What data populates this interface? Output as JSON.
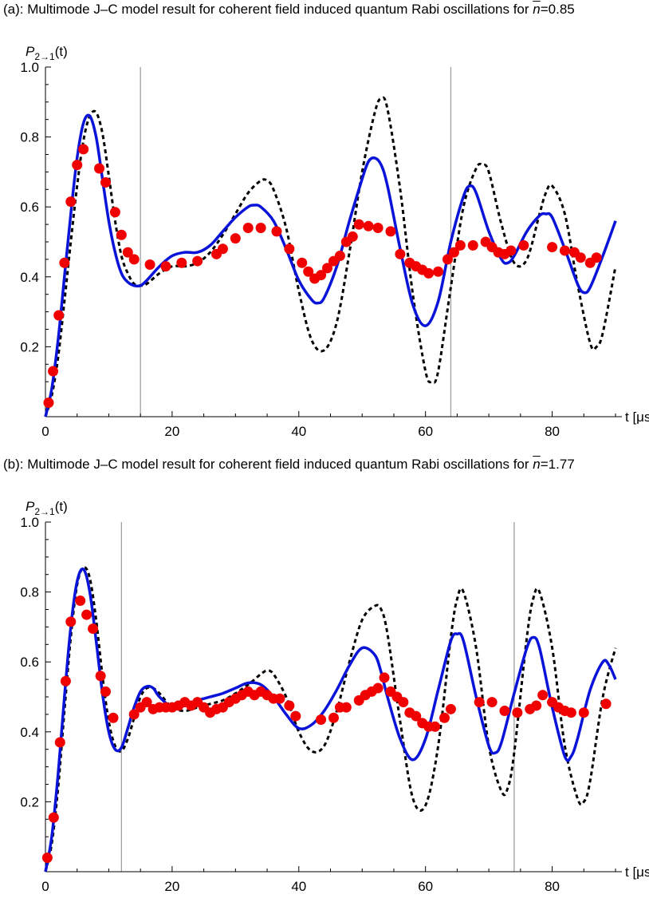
{
  "panels": [
    {
      "title_prefix": "(a): Multimode J–C model result for coherent field induced quantum Rabi oscillations for ",
      "nbar_symbol": "n",
      "nbar_value": "=0.85"
    },
    {
      "title_prefix": "(b): Multimode J–C model result for coherent field induced quantum Rabi oscillations for ",
      "nbar_symbol": "n",
      "nbar_value": "=1.77"
    }
  ],
  "colors": {
    "model_curve": "#0a14d8",
    "dashed_curve": "#000000",
    "data_points": "#f00000",
    "marker_lines": "#999999"
  },
  "chart_data": [
    {
      "type": "line",
      "ylabel_main": "P",
      "ylabel_sub": "2→1",
      "ylabel_suffix": "(t)",
      "xlabel": "t [μs]",
      "xlim": [
        0,
        90
      ],
      "ylim": [
        0,
        1.0
      ],
      "xticks": [
        0,
        20,
        40,
        60,
        80
      ],
      "yticks": [
        "0.2",
        "0.4",
        "0.6",
        "0.8",
        "1.0"
      ],
      "ytick_values": [
        0.2,
        0.4,
        0.6,
        0.8,
        1.0
      ],
      "vertical_markers": [
        15,
        64
      ],
      "series": [
        {
          "style": "solid",
          "x": [
            0,
            1,
            2,
            3,
            4,
            5,
            6,
            7,
            8,
            9,
            10,
            11,
            12,
            13,
            14,
            15,
            16,
            18,
            20,
            22,
            24,
            26,
            28,
            30,
            32,
            33,
            34,
            36,
            38,
            40,
            42,
            43,
            44,
            46,
            48,
            50,
            51,
            52,
            53,
            54,
            56,
            58,
            60,
            62,
            64,
            66,
            67,
            68,
            70,
            72,
            73,
            74,
            76,
            78,
            79,
            80,
            82,
            84,
            85,
            86,
            88,
            90
          ],
          "y": [
            0.0,
            0.08,
            0.22,
            0.4,
            0.58,
            0.74,
            0.84,
            0.86,
            0.8,
            0.68,
            0.56,
            0.47,
            0.41,
            0.385,
            0.375,
            0.375,
            0.39,
            0.43,
            0.46,
            0.47,
            0.47,
            0.49,
            0.53,
            0.57,
            0.6,
            0.605,
            0.6,
            0.56,
            0.48,
            0.39,
            0.335,
            0.325,
            0.34,
            0.43,
            0.56,
            0.68,
            0.73,
            0.74,
            0.72,
            0.66,
            0.48,
            0.32,
            0.26,
            0.33,
            0.5,
            0.63,
            0.66,
            0.64,
            0.53,
            0.45,
            0.44,
            0.46,
            0.53,
            0.575,
            0.58,
            0.57,
            0.48,
            0.38,
            0.355,
            0.37,
            0.46,
            0.56
          ]
        },
        {
          "style": "dashed",
          "x": [
            0,
            1,
            2,
            3,
            4,
            5,
            6,
            7,
            8,
            9,
            10,
            11,
            12,
            13,
            14,
            15,
            16,
            18,
            20,
            22,
            24,
            26,
            28,
            30,
            32,
            34,
            35,
            36,
            38,
            40,
            42,
            44,
            46,
            48,
            50,
            52,
            53,
            54,
            56,
            58,
            60,
            61,
            62,
            64,
            66,
            68,
            69,
            70,
            72,
            74,
            76,
            78,
            79,
            80,
            82,
            84,
            86,
            87,
            88,
            90
          ],
          "y": [
            0.0,
            0.06,
            0.17,
            0.33,
            0.5,
            0.66,
            0.79,
            0.86,
            0.87,
            0.81,
            0.69,
            0.56,
            0.46,
            0.41,
            0.38,
            0.375,
            0.38,
            0.41,
            0.43,
            0.43,
            0.44,
            0.47,
            0.52,
            0.58,
            0.64,
            0.675,
            0.675,
            0.65,
            0.54,
            0.36,
            0.22,
            0.19,
            0.27,
            0.47,
            0.7,
            0.87,
            0.91,
            0.88,
            0.65,
            0.35,
            0.13,
            0.1,
            0.13,
            0.37,
            0.6,
            0.71,
            0.72,
            0.7,
            0.55,
            0.44,
            0.45,
            0.58,
            0.64,
            0.66,
            0.58,
            0.38,
            0.21,
            0.2,
            0.24,
            0.43
          ]
        },
        {
          "style": "points",
          "x": [
            0.5,
            1.2,
            2.1,
            3.0,
            4.0,
            5.0,
            6.0,
            8.5,
            9.5,
            11.0,
            12.0,
            13.0,
            14.0,
            16.5,
            19.0,
            21.5,
            24.0,
            27.0,
            28.0,
            30.0,
            32.0,
            34.0,
            36.5,
            38.5,
            40.5,
            41.5,
            42.5,
            43.5,
            44.5,
            45.5,
            46.5,
            47.5,
            48.5,
            49.5,
            51.0,
            52.5,
            54.5,
            56.0,
            57.5,
            58.5,
            59.5,
            60.5,
            62.0,
            63.5,
            64.5,
            65.5,
            67.5,
            69.5,
            70.5,
            71.5,
            72.5,
            73.5,
            75.5,
            80.0,
            82.0,
            83.5,
            84.5,
            86.0,
            87.0
          ],
          "y": [
            0.04,
            0.13,
            0.29,
            0.44,
            0.615,
            0.72,
            0.765,
            0.71,
            0.67,
            0.585,
            0.52,
            0.47,
            0.45,
            0.435,
            0.43,
            0.44,
            0.445,
            0.465,
            0.48,
            0.51,
            0.54,
            0.54,
            0.53,
            0.48,
            0.44,
            0.415,
            0.395,
            0.405,
            0.425,
            0.445,
            0.46,
            0.5,
            0.515,
            0.55,
            0.545,
            0.54,
            0.53,
            0.465,
            0.44,
            0.43,
            0.42,
            0.41,
            0.415,
            0.45,
            0.47,
            0.49,
            0.49,
            0.5,
            0.485,
            0.47,
            0.465,
            0.475,
            0.49,
            0.485,
            0.475,
            0.47,
            0.455,
            0.44,
            0.455
          ]
        }
      ]
    },
    {
      "type": "line",
      "ylabel_main": "P",
      "ylabel_sub": "2→1",
      "ylabel_suffix": "(t)",
      "xlabel": "t [μs]",
      "xlim": [
        0,
        90
      ],
      "ylim": [
        0,
        1.0
      ],
      "xticks": [
        0,
        20,
        40,
        60,
        80
      ],
      "yticks": [
        "0.2",
        "0.4",
        "0.6",
        "0.8",
        "1.0"
      ],
      "ytick_values": [
        0.2,
        0.4,
        0.6,
        0.8,
        1.0
      ],
      "vertical_markers": [
        12,
        74
      ],
      "series": [
        {
          "style": "solid",
          "x": [
            0,
            1,
            2,
            3,
            4,
            5,
            6,
            7,
            8,
            9,
            10,
            11,
            12,
            13,
            14,
            15,
            16,
            17,
            18,
            20,
            22,
            24,
            26,
            28,
            30,
            32,
            34,
            36,
            38,
            40,
            42,
            44,
            46,
            48,
            50,
            52,
            53,
            54,
            56,
            58,
            60,
            62,
            64,
            65,
            66,
            68,
            70,
            71,
            72,
            74,
            76,
            77,
            78,
            80,
            82,
            83,
            84,
            86,
            88,
            89,
            90
          ],
          "y": [
            0.0,
            0.1,
            0.28,
            0.5,
            0.7,
            0.83,
            0.865,
            0.8,
            0.66,
            0.51,
            0.4,
            0.35,
            0.355,
            0.41,
            0.47,
            0.515,
            0.53,
            0.525,
            0.5,
            0.47,
            0.475,
            0.49,
            0.5,
            0.51,
            0.525,
            0.54,
            0.535,
            0.5,
            0.45,
            0.41,
            0.42,
            0.46,
            0.52,
            0.59,
            0.64,
            0.62,
            0.57,
            0.5,
            0.38,
            0.32,
            0.38,
            0.52,
            0.66,
            0.68,
            0.66,
            0.5,
            0.36,
            0.34,
            0.37,
            0.51,
            0.64,
            0.67,
            0.64,
            0.47,
            0.33,
            0.33,
            0.38,
            0.52,
            0.6,
            0.59,
            0.55
          ]
        },
        {
          "style": "dashed",
          "x": [
            0,
            1,
            2,
            3,
            4,
            5,
            6,
            7,
            8,
            9,
            10,
            11,
            12,
            13,
            14,
            15,
            16,
            17,
            18,
            20,
            22,
            24,
            26,
            28,
            30,
            32,
            34,
            35,
            36,
            38,
            40,
            42,
            44,
            46,
            48,
            50,
            52,
            53,
            54,
            56,
            58,
            60,
            62,
            64,
            65,
            66,
            68,
            70,
            72,
            73,
            74,
            76,
            77,
            78,
            80,
            82,
            84,
            85,
            86,
            88,
            90
          ],
          "y": [
            0.0,
            0.08,
            0.24,
            0.46,
            0.67,
            0.82,
            0.87,
            0.84,
            0.72,
            0.56,
            0.43,
            0.36,
            0.345,
            0.38,
            0.44,
            0.5,
            0.525,
            0.525,
            0.51,
            0.47,
            0.46,
            0.47,
            0.48,
            0.49,
            0.51,
            0.535,
            0.565,
            0.575,
            0.565,
            0.5,
            0.4,
            0.345,
            0.36,
            0.46,
            0.6,
            0.72,
            0.76,
            0.75,
            0.68,
            0.43,
            0.21,
            0.19,
            0.36,
            0.67,
            0.78,
            0.8,
            0.64,
            0.36,
            0.23,
            0.24,
            0.34,
            0.67,
            0.78,
            0.8,
            0.64,
            0.36,
            0.21,
            0.2,
            0.26,
            0.5,
            0.64
          ]
        },
        {
          "style": "points",
          "x": [
            0.3,
            1.3,
            2.3,
            3.2,
            4.0,
            5.5,
            6.5,
            7.5,
            8.7,
            9.5,
            10.7,
            14.0,
            15.0,
            16.0,
            17.0,
            18.0,
            19.0,
            20.0,
            21.0,
            22.0,
            23.0,
            24.0,
            25.0,
            26.0,
            27.0,
            28.0,
            29.0,
            30.0,
            31.0,
            32.0,
            33.0,
            34.0,
            35.0,
            36.0,
            37.0,
            38.5,
            39.5,
            43.5,
            45.5,
            46.5,
            47.5,
            49.5,
            50.5,
            51.5,
            52.5,
            53.5,
            54.5,
            55.5,
            56.5,
            57.5,
            58.5,
            59.5,
            60.5,
            61.5,
            63.0,
            64.0,
            68.5,
            70.5,
            72.5,
            74.5,
            76.5,
            77.5,
            78.5,
            80.0,
            81.0,
            82.0,
            83.0,
            85.0,
            88.5
          ],
          "y": [
            0.04,
            0.155,
            0.37,
            0.545,
            0.715,
            0.775,
            0.735,
            0.695,
            0.56,
            0.515,
            0.44,
            0.45,
            0.47,
            0.485,
            0.465,
            0.47,
            0.47,
            0.47,
            0.475,
            0.485,
            0.475,
            0.485,
            0.47,
            0.455,
            0.465,
            0.47,
            0.485,
            0.495,
            0.505,
            0.515,
            0.505,
            0.515,
            0.505,
            0.495,
            0.495,
            0.475,
            0.445,
            0.435,
            0.44,
            0.47,
            0.47,
            0.49,
            0.505,
            0.515,
            0.525,
            0.555,
            0.515,
            0.5,
            0.485,
            0.455,
            0.445,
            0.425,
            0.415,
            0.415,
            0.44,
            0.465,
            0.485,
            0.485,
            0.46,
            0.455,
            0.465,
            0.475,
            0.505,
            0.485,
            0.47,
            0.46,
            0.455,
            0.455,
            0.48
          ]
        }
      ]
    }
  ]
}
